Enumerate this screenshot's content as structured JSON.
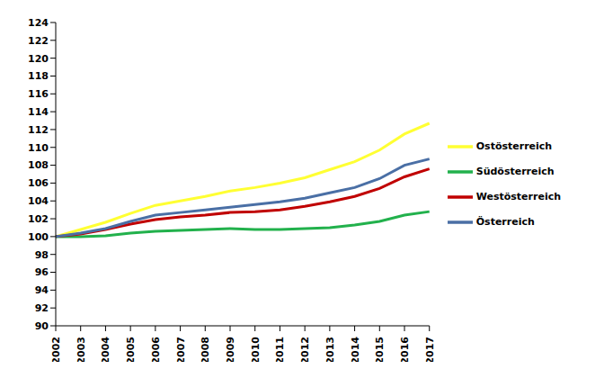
{
  "chart_data": {
    "type": "line",
    "categories": [
      "2002",
      "2003",
      "2004",
      "2005",
      "2006",
      "2007",
      "2008",
      "2009",
      "2010",
      "2011",
      "2012",
      "2013",
      "2014",
      "2015",
      "2016",
      "2017"
    ],
    "series": [
      {
        "name": "Ostösterreich",
        "color": "#ffff33",
        "values": [
          100,
          100.8,
          101.6,
          102.6,
          103.5,
          104.0,
          104.5,
          105.1,
          105.5,
          106.0,
          106.6,
          107.5,
          108.4,
          109.7,
          111.5,
          112.7
        ]
      },
      {
        "name": "Südösterreich",
        "color": "#22b14c",
        "values": [
          100,
          100.0,
          100.1,
          100.4,
          100.6,
          100.7,
          100.8,
          100.9,
          100.8,
          100.8,
          100.9,
          101.0,
          101.3,
          101.7,
          102.4,
          102.8
        ]
      },
      {
        "name": "Westösterreich",
        "color": "#c00000",
        "values": [
          100,
          100.3,
          100.8,
          101.4,
          101.9,
          102.2,
          102.4,
          102.7,
          102.8,
          103.0,
          103.4,
          103.9,
          104.5,
          105.4,
          106.7,
          107.6
        ]
      },
      {
        "name": "Österreich",
        "color": "#4a6fa5",
        "values": [
          100,
          100.4,
          100.9,
          101.7,
          102.4,
          102.7,
          103.0,
          103.3,
          103.6,
          103.9,
          104.3,
          104.9,
          105.5,
          106.5,
          108.0,
          108.7
        ]
      }
    ],
    "ylim": [
      90,
      124
    ],
    "yticks": [
      90,
      92,
      94,
      96,
      98,
      100,
      102,
      104,
      106,
      108,
      110,
      112,
      114,
      116,
      118,
      120,
      122,
      124
    ],
    "grid": false,
    "legend": "right"
  }
}
